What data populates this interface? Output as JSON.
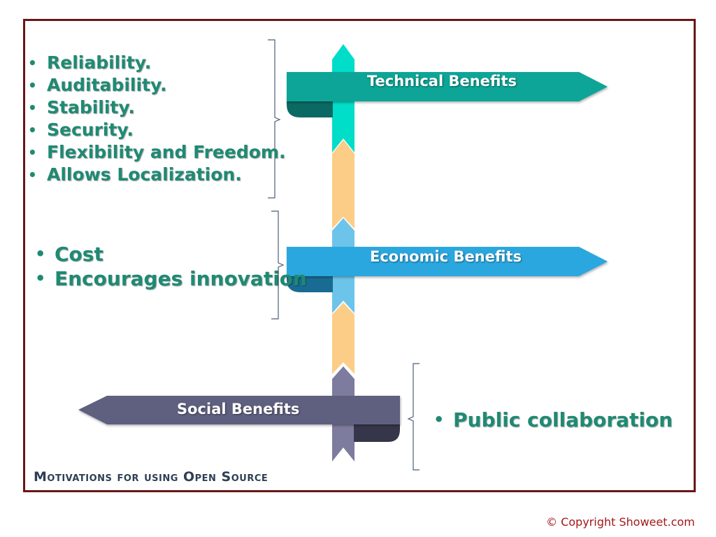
{
  "technical": {
    "label": "Technical Benefits",
    "color": "#0aa597",
    "items": [
      "Reliability.",
      "Auditability.",
      "Stability.",
      "Security.",
      "Flexibility and Freedom.",
      "Allows Localization."
    ]
  },
  "economic": {
    "label": "Economic Benefits",
    "color": "#29a7df",
    "items": [
      "Cost",
      "Encourages innovation"
    ]
  },
  "social": {
    "label": "Social Benefits",
    "color": "#5f5e80",
    "items": [
      "Public collaboration"
    ]
  },
  "caption": "Motivations for using Open Source",
  "copyright": "© Copyright Showeet.com",
  "colors": {
    "text_accent": "#1f8a73",
    "frame": "#6b1517",
    "spine_orange": "#fccd87",
    "copyright": "#a3171b"
  }
}
